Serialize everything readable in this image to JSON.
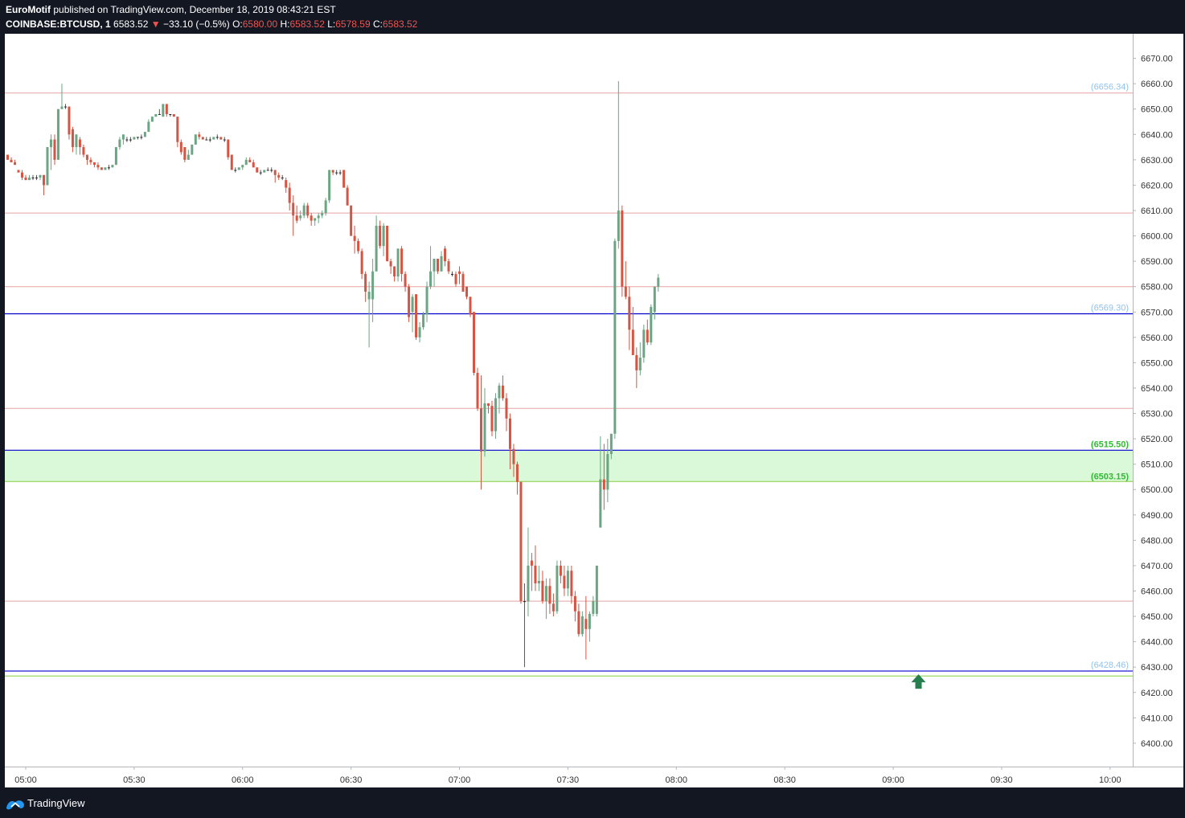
{
  "header": {
    "author": "EuroMotif",
    "published": "published on TradingView.com, December 18, 2019 08:43:21 EST",
    "symbol": "COINBASE:BTCUSD, 1",
    "last": "6583.52",
    "change_arrow": "▼",
    "change": "−33.10 (−0.5%)",
    "o_label": "O:",
    "o_value": "6580.00",
    "h_label": "H:",
    "h_value": "6583.52",
    "l_label": "L:",
    "l_value": "6578.59",
    "c_label": "C:",
    "c_value": "6583.52"
  },
  "footer": {
    "brand": "TradingView",
    "logo_icon": "tradingview-logo-icon"
  },
  "colors": {
    "background": "#131722",
    "panel": "#ffffff",
    "up": "#6ba583",
    "down": "#d75442",
    "blue_line": "#0000cc",
    "red_line": "#e5a3a3",
    "zone_fill": "#d9f9d9",
    "zone_border": "#88cc44",
    "label_blue": "#8fc3f0",
    "label_green": "#2ebd2e",
    "arrow": "#26804e"
  },
  "chart_data": {
    "type": "candlestick",
    "title": "COINBASE:BTCUSD, 1",
    "xlabel": "",
    "ylabel": "",
    "ylim": [
      6385,
      6677
    ],
    "xlim": [
      "04:55",
      "10:01"
    ],
    "x_ticks": [
      "05:00",
      "05:30",
      "06:00",
      "06:30",
      "07:00",
      "07:30",
      "08:00",
      "08:30",
      "09:00",
      "09:30",
      "10:00"
    ],
    "y_ticks": [
      6390,
      6400,
      6410,
      6420,
      6430,
      6440,
      6450,
      6460,
      6470,
      6480,
      6490,
      6500,
      6510,
      6520,
      6530,
      6540,
      6550,
      6560,
      6570,
      6580,
      6590,
      6600,
      6610,
      6620,
      6630,
      6640,
      6650,
      6660,
      6670
    ],
    "y_tick_labels": [
      "6390.00",
      "6400.00",
      "6410.00",
      "6420.00",
      "6430.00",
      "6440.00",
      "6450.00",
      "6460.00",
      "6470.00",
      "6480.00",
      "6490.00",
      "6500.00",
      "6510.00",
      "6520.00",
      "6530.00",
      "6540.00",
      "6550.00",
      "6560.00",
      "6570.00",
      "6580.00",
      "6590.00",
      "6600.00",
      "6610.00",
      "6620.00",
      "6630.00",
      "6640.00",
      "6650.00",
      "6660.00",
      "6670.00"
    ],
    "levels": [
      {
        "value": 6656.34,
        "label": "(6656.34)",
        "style": "red-line",
        "label_color": "blue"
      },
      {
        "value": 6609.0,
        "label": "",
        "style": "red-line"
      },
      {
        "value": 6580.0,
        "label": "",
        "style": "red-line"
      },
      {
        "value": 6569.3,
        "label": "(6569.30)",
        "style": "blue-line",
        "label_color": "blue"
      },
      {
        "value": 6532.0,
        "label": "",
        "style": "red-line"
      },
      {
        "value": 6456.0,
        "label": "",
        "style": "red-line"
      },
      {
        "value": 6428.46,
        "label": "(6428.46)",
        "style": "blue-line",
        "label_color": "blue"
      },
      {
        "value": 6426.5,
        "label": "",
        "style": "green-line"
      }
    ],
    "zone": {
      "top": 6515.5,
      "bottom": 6503.15,
      "top_label": "(6515.50)",
      "bottom_label": "(6503.15)"
    },
    "marker": {
      "type": "arrow-up",
      "time": "09:07",
      "value": 6424
    },
    "candles": [
      [
        "04:55",
        6632,
        6632,
        6630,
        6630
      ],
      [
        "04:56",
        6630,
        6631,
        6629,
        6629
      ],
      [
        "04:57",
        6629,
        6630,
        6628,
        6628
      ],
      [
        "04:58",
        6626,
        6626,
        6625,
        6625
      ],
      [
        "04:59",
        6625,
        6626,
        6622,
        6623
      ],
      [
        "05:00",
        6623,
        6624,
        6622,
        6622
      ],
      [
        "05:01",
        6622,
        6624,
        6622,
        6623
      ],
      [
        "05:02",
        6623,
        6624,
        6622,
        6623
      ],
      [
        "05:03",
        6623,
        6624,
        6622,
        6623
      ],
      [
        "05:04",
        6623,
        6624,
        6622,
        6624
      ],
      [
        "05:05",
        6624,
        6624,
        6616,
        6620
      ],
      [
        "05:06",
        6620,
        6635,
        6620,
        6635
      ],
      [
        "05:07",
        6635,
        6640,
        6626,
        6638
      ],
      [
        "05:08",
        6638,
        6640,
        6628,
        6630
      ],
      [
        "05:09",
        6630,
        6650,
        6630,
        6650
      ],
      [
        "05:10",
        6650,
        6660,
        6650,
        6651
      ],
      [
        "05:11",
        6651,
        6652,
        6650,
        6651
      ],
      [
        "05:12",
        6651,
        6651,
        6638,
        6640
      ],
      [
        "05:13",
        6642,
        6643,
        6633,
        6635
      ],
      [
        "05:14",
        6635,
        6640,
        6632,
        6640
      ],
      [
        "05:15",
        6638,
        6639,
        6632,
        6635
      ],
      [
        "05:16",
        6635,
        6636,
        6631,
        6632
      ],
      [
        "05:17",
        6632,
        6632,
        6628,
        6630
      ],
      [
        "05:18",
        6630,
        6631,
        6628,
        6629
      ],
      [
        "05:19",
        6629,
        6629,
        6627,
        6628
      ],
      [
        "05:20",
        6628,
        6629,
        6626,
        6627
      ],
      [
        "05:21",
        6627,
        6627,
        6626,
        6626
      ],
      [
        "05:22",
        6626,
        6627,
        6626,
        6627
      ],
      [
        "05:23",
        6627,
        6628,
        6626,
        6627
      ],
      [
        "05:24",
        6627,
        6628,
        6627,
        6628
      ],
      [
        "05:25",
        6628,
        6635,
        6628,
        6635
      ],
      [
        "05:26",
        6635,
        6639,
        6634,
        6638
      ],
      [
        "05:27",
        6638,
        6640,
        6636,
        6640
      ],
      [
        "05:28",
        6638,
        6639,
        6637,
        6638
      ],
      [
        "05:29",
        6638,
        6639,
        6637,
        6638
      ],
      [
        "05:30",
        6638,
        6639,
        6638,
        6639
      ],
      [
        "05:31",
        6639,
        6639,
        6638,
        6639
      ],
      [
        "05:32",
        6639,
        6640,
        6638,
        6639
      ],
      [
        "05:33",
        6639,
        6641,
        6639,
        6641
      ],
      [
        "05:34",
        6641,
        6646,
        6641,
        6645
      ],
      [
        "05:35",
        6645,
        6647,
        6645,
        6647
      ],
      [
        "05:36",
        6647,
        6648,
        6647,
        6648
      ],
      [
        "05:37",
        6648,
        6650,
        6648,
        6648
      ],
      [
        "05:38",
        6647,
        6652,
        6647,
        6652
      ],
      [
        "05:39",
        6652,
        6652,
        6647,
        6648
      ],
      [
        "05:40",
        6648,
        6648,
        6647,
        6648
      ],
      [
        "05:41",
        6648,
        6648,
        6647,
        6647
      ],
      [
        "05:42",
        6647,
        6647,
        6635,
        6637
      ],
      [
        "05:43",
        6637,
        6638,
        6632,
        6633
      ],
      [
        "05:44",
        6635,
        6635,
        6629,
        6630
      ],
      [
        "05:45",
        6630,
        6634,
        6630,
        6632
      ],
      [
        "05:46",
        6632,
        6636,
        6632,
        6636
      ],
      [
        "05:47",
        6636,
        6640,
        6636,
        6640
      ],
      [
        "05:48",
        6640,
        6641,
        6638,
        6639
      ],
      [
        "05:49",
        6639,
        6639,
        6638,
        6638
      ],
      [
        "05:50",
        6638,
        6639,
        6638,
        6638
      ],
      [
        "05:51",
        6638,
        6639,
        6637,
        6638
      ],
      [
        "05:52",
        6638,
        6639,
        6638,
        6639
      ],
      [
        "05:53",
        6639,
        6640,
        6638,
        6639
      ],
      [
        "05:54",
        6639,
        6639,
        6638,
        6638
      ],
      [
        "05:55",
        6638,
        6639,
        6637,
        6638
      ],
      [
        "05:56",
        6638,
        6638,
        6630,
        6631
      ],
      [
        "05:57",
        6632,
        6632,
        6626,
        6626
      ],
      [
        "05:58",
        6626,
        6627,
        6625,
        6626
      ],
      [
        "05:59",
        6626,
        6627,
        6626,
        6627
      ],
      [
        "06:00",
        6627,
        6628,
        6626,
        6628
      ],
      [
        "06:01",
        6628,
        6631,
        6628,
        6630
      ],
      [
        "06:02",
        6630,
        6631,
        6629,
        6629
      ],
      [
        "06:03",
        6629,
        6630,
        6627,
        6627
      ],
      [
        "06:04",
        6627,
        6627,
        6625,
        6625
      ],
      [
        "06:05",
        6625,
        6626,
        6624,
        6625
      ],
      [
        "06:06",
        6625,
        6626,
        6625,
        6626
      ],
      [
        "06:07",
        6626,
        6627,
        6626,
        6626
      ],
      [
        "06:08",
        6626,
        6627,
        6625,
        6626
      ],
      [
        "06:09",
        6626,
        6626,
        6621,
        6624
      ],
      [
        "06:10",
        6624,
        6625,
        6622,
        6623
      ],
      [
        "06:11",
        6623,
        6624,
        6622,
        6623
      ],
      [
        "06:12",
        6622,
        6623,
        6617,
        6619
      ],
      [
        "06:13",
        6619,
        6621,
        6610,
        6613
      ],
      [
        "06:14",
        6613,
        6616,
        6600,
        6608
      ],
      [
        "06:15",
        6608,
        6612,
        6605,
        6606
      ],
      [
        "06:16",
        6607,
        6610,
        6606,
        6608
      ],
      [
        "06:17",
        6608,
        6613,
        6607,
        6612
      ],
      [
        "06:18",
        6612,
        6613,
        6607,
        6608
      ],
      [
        "06:19",
        6608,
        6609,
        6604,
        6606
      ],
      [
        "06:20",
        6606,
        6607,
        6604,
        6607
      ],
      [
        "06:21",
        6607,
        6609,
        6605,
        6608
      ],
      [
        "06:22",
        6608,
        6610,
        6607,
        6609
      ],
      [
        "06:23",
        6609,
        6615,
        6608,
        6614
      ],
      [
        "06:24",
        6614,
        6626,
        6613,
        6626
      ],
      [
        "06:25",
        6626,
        6626,
        6624,
        6625
      ],
      [
        "06:26",
        6625,
        6626,
        6624,
        6625
      ],
      [
        "06:27",
        6625,
        6626,
        6624,
        6625
      ],
      [
        "06:28",
        6626,
        6626,
        6619,
        6619
      ],
      [
        "06:29",
        6619,
        6620,
        6612,
        6612
      ],
      [
        "06:30",
        6612,
        6612,
        6600,
        6600
      ],
      [
        "06:31",
        6600,
        6604,
        6593,
        6598
      ],
      [
        "06:32",
        6598,
        6599,
        6593,
        6594
      ],
      [
        "06:33",
        6594,
        6595,
        6583,
        6585
      ],
      [
        "06:34",
        6585,
        6586,
        6574,
        6578
      ],
      [
        "06:35",
        6575,
        6582,
        6556,
        6578
      ],
      [
        "06:36",
        6575,
        6591,
        6566,
        6586
      ],
      [
        "06:37",
        6586,
        6608,
        6586,
        6604
      ],
      [
        "06:38",
        6604,
        6606,
        6595,
        6596
      ],
      [
        "06:39",
        6596,
        6605,
        6592,
        6604
      ],
      [
        "06:40",
        6604,
        6604,
        6590,
        6590
      ],
      [
        "06:41",
        6590,
        6591,
        6585,
        6588
      ],
      [
        "06:42",
        6588,
        6588,
        6582,
        6584
      ],
      [
        "06:43",
        6584,
        6595,
        6582,
        6595
      ],
      [
        "06:44",
        6595,
        6596,
        6582,
        6585
      ],
      [
        "06:45",
        6585,
        6586,
        6578,
        6580
      ],
      [
        "06:46",
        6580,
        6581,
        6566,
        6568
      ],
      [
        "06:47",
        6570,
        6577,
        6562,
        6576
      ],
      [
        "06:48",
        6577,
        6577,
        6559,
        6560
      ],
      [
        "06:49",
        6560,
        6566,
        6558,
        6564
      ],
      [
        "06:50",
        6564,
        6570,
        6563,
        6569
      ],
      [
        "06:51",
        6569,
        6582,
        6566,
        6580
      ],
      [
        "06:52",
        6580,
        6596,
        6579,
        6586
      ],
      [
        "06:53",
        6586,
        6591,
        6580,
        6591
      ],
      [
        "06:54",
        6591,
        6591,
        6585,
        6586
      ],
      [
        "06:55",
        6586,
        6594,
        6586,
        6592
      ],
      [
        "06:56",
        6595,
        6596,
        6588,
        6590
      ],
      [
        "06:57",
        6590,
        6591,
        6585,
        6586
      ],
      [
        "06:58",
        6585,
        6586,
        6584,
        6585
      ],
      [
        "06:59",
        6585,
        6586,
        6580,
        6581
      ],
      [
        "07:00",
        6586,
        6588,
        6581,
        6585
      ],
      [
        "07:01",
        6585,
        6586,
        6578,
        6578
      ],
      [
        "07:02",
        6580,
        6580,
        6575,
        6576
      ],
      [
        "07:03",
        6576,
        6576,
        6568,
        6569
      ],
      [
        "07:04",
        6570,
        6570,
        6545,
        6546
      ],
      [
        "07:05",
        6546,
        6548,
        6531,
        6532
      ],
      [
        "07:06",
        6532,
        6545,
        6500,
        6515
      ],
      [
        "07:07",
        6515,
        6540,
        6513,
        6534
      ],
      [
        "07:08",
        6534,
        6534,
        6530,
        6533
      ],
      [
        "07:09",
        6533,
        6535,
        6521,
        6523
      ],
      [
        "07:10",
        6523,
        6538,
        6520,
        6536
      ],
      [
        "07:11",
        6536,
        6542,
        6530,
        6541
      ],
      [
        "07:12",
        6541,
        6545,
        6535,
        6536
      ],
      [
        "07:13",
        6536,
        6538,
        6523,
        6528
      ],
      [
        "07:14",
        6528,
        6530,
        6508,
        6516
      ],
      [
        "07:15",
        6516,
        6518,
        6505,
        6510
      ],
      [
        "07:16",
        6510,
        6511,
        6498,
        6503
      ],
      [
        "07:17",
        6503,
        6503,
        6455,
        6456
      ],
      [
        "07:18",
        6456,
        6463,
        6430,
        6456
      ],
      [
        "07:19",
        6456,
        6485,
        6450,
        6470
      ],
      [
        "07:20",
        6472,
        6475,
        6460,
        6470
      ],
      [
        "07:21",
        6470,
        6478,
        6460,
        6463
      ],
      [
        "07:22",
        6463,
        6470,
        6460,
        6464
      ],
      [
        "07:23",
        6464,
        6468,
        6455,
        6456
      ],
      [
        "07:24",
        6456,
        6465,
        6449,
        6462
      ],
      [
        "07:25",
        6462,
        6465,
        6451,
        6455
      ],
      [
        "07:26",
        6455,
        6459,
        6450,
        6452
      ],
      [
        "07:27",
        6452,
        6472,
        6451,
        6470
      ],
      [
        "07:28",
        6470,
        6472,
        6463,
        6466
      ],
      [
        "07:29",
        6466,
        6470,
        6458,
        6461
      ],
      [
        "07:30",
        6461,
        6470,
        6458,
        6468
      ],
      [
        "07:31",
        6468,
        6470,
        6455,
        6458
      ],
      [
        "07:32",
        6458,
        6460,
        6448,
        6452
      ],
      [
        "07:33",
        6452,
        6455,
        6442,
        6443
      ],
      [
        "07:34",
        6443,
        6452,
        6442,
        6450
      ],
      [
        "07:35",
        6449,
        6458,
        6433,
        6445
      ],
      [
        "07:36",
        6445,
        6452,
        6440,
        6451
      ],
      [
        "07:37",
        6451,
        6458,
        6450,
        6456
      ],
      [
        "07:38",
        6451,
        6470,
        6450,
        6470
      ],
      [
        "07:39",
        6485,
        6521,
        6485,
        6504
      ],
      [
        "07:40",
        6504,
        6518,
        6492,
        6500
      ],
      [
        "07:41",
        6500,
        6520,
        6495,
        6514
      ],
      [
        "07:42",
        6514,
        6522,
        6512,
        6522
      ],
      [
        "07:43",
        6522,
        6599,
        6520,
        6598
      ],
      [
        "07:44",
        6598,
        6661,
        6595,
        6610
      ],
      [
        "07:45",
        6610,
        6612,
        6576,
        6580
      ],
      [
        "07:46",
        6580,
        6590,
        6575,
        6576
      ],
      [
        "07:47",
        6576,
        6580,
        6555,
        6563
      ],
      [
        "07:48",
        6563,
        6572,
        6553,
        6553
      ],
      [
        "07:49",
        6553,
        6556,
        6540,
        6547
      ],
      [
        "07:50",
        6547,
        6558,
        6545,
        6552
      ],
      [
        "07:51",
        6552,
        6565,
        6550,
        6563
      ],
      [
        "07:52",
        6563,
        6567,
        6557,
        6558
      ],
      [
        "07:53",
        6558,
        6573,
        6557,
        6572
      ],
      [
        "07:54",
        6570,
        6580,
        6567,
        6580
      ],
      [
        "07:55",
        6580,
        6585,
        6578,
        6583.52
      ]
    ]
  }
}
